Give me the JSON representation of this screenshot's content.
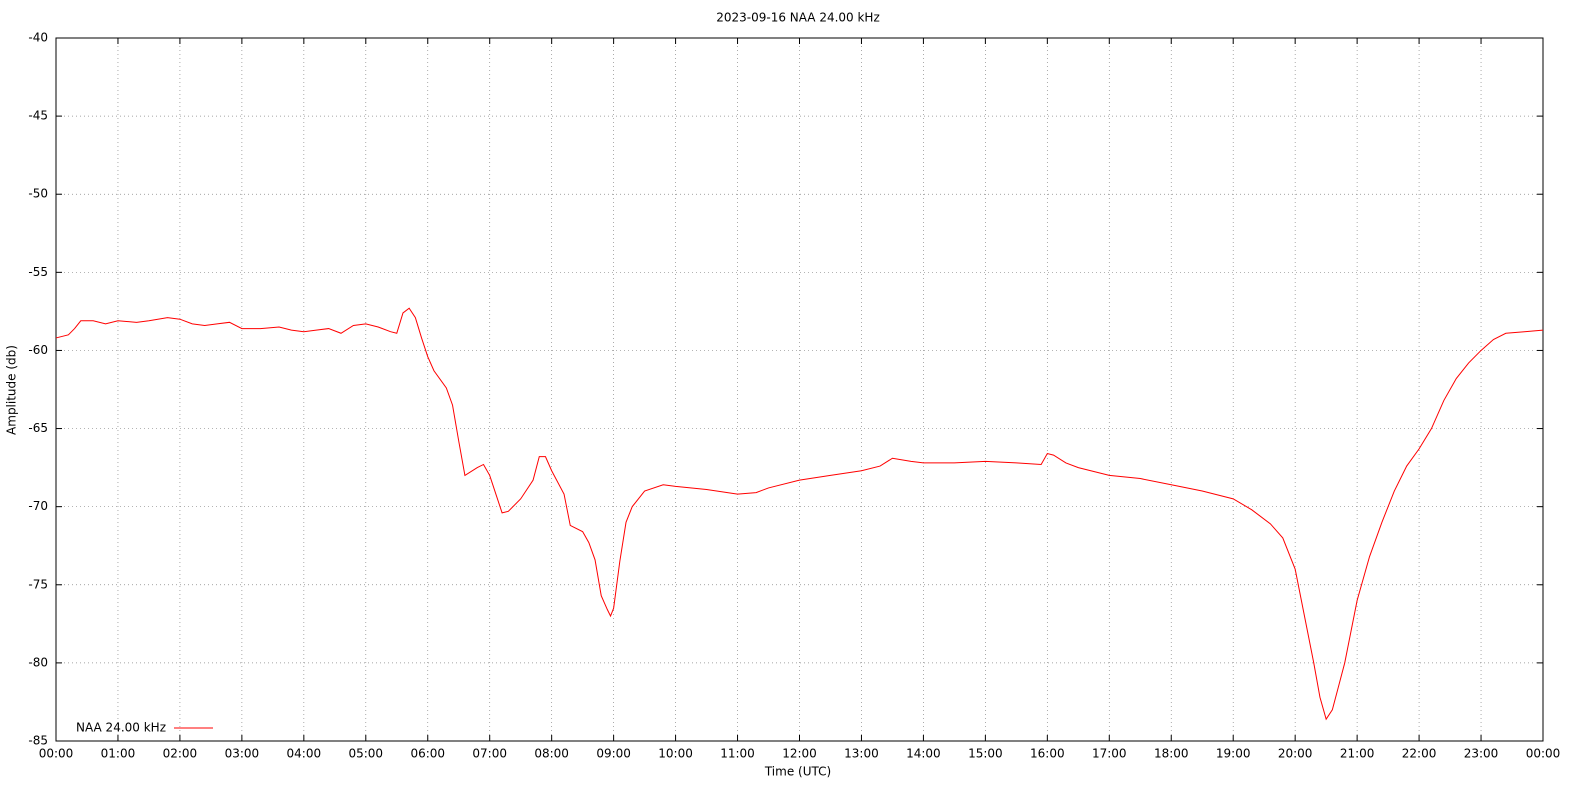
{
  "chart_data": {
    "type": "line",
    "title": "2023-09-16 NAA 24.00 kHz",
    "x_label": "Time (UTC)",
    "y_label": "Amplitude (db)",
    "legend": "bottom-left",
    "grid": true,
    "xlim": [
      0,
      24
    ],
    "xticks": [
      {
        "value": 0,
        "label": "00:00"
      },
      {
        "value": 1,
        "label": "01:00"
      },
      {
        "value": 2,
        "label": "02:00"
      },
      {
        "value": 3,
        "label": "03:00"
      },
      {
        "value": 4,
        "label": "04:00"
      },
      {
        "value": 5,
        "label": "05:00"
      },
      {
        "value": 6,
        "label": "06:00"
      },
      {
        "value": 7,
        "label": "07:00"
      },
      {
        "value": 8,
        "label": "08:00"
      },
      {
        "value": 9,
        "label": "09:00"
      },
      {
        "value": 10,
        "label": "10:00"
      },
      {
        "value": 11,
        "label": "11:00"
      },
      {
        "value": 12,
        "label": "12:00"
      },
      {
        "value": 13,
        "label": "13:00"
      },
      {
        "value": 14,
        "label": "14:00"
      },
      {
        "value": 15,
        "label": "15:00"
      },
      {
        "value": 16,
        "label": "16:00"
      },
      {
        "value": 17,
        "label": "17:00"
      },
      {
        "value": 18,
        "label": "18:00"
      },
      {
        "value": 19,
        "label": "19:00"
      },
      {
        "value": 20,
        "label": "20:00"
      },
      {
        "value": 21,
        "label": "21:00"
      },
      {
        "value": 22,
        "label": "22:00"
      },
      {
        "value": 23,
        "label": "23:00"
      },
      {
        "value": 24,
        "label": "00:00"
      }
    ],
    "ylim": [
      -85,
      -40
    ],
    "yticks": [
      -85,
      -80,
      -75,
      -70,
      -65,
      -60,
      -55,
      -50,
      -45,
      -40
    ],
    "x": [
      0,
      0.2,
      0.3,
      0.4,
      0.6,
      0.8,
      1,
      1.3,
      1.5,
      1.8,
      2,
      2.2,
      2.4,
      2.6,
      2.8,
      3,
      3.3,
      3.6,
      3.8,
      4,
      4.2,
      4.4,
      4.6,
      4.8,
      5,
      5.2,
      5.4,
      5.5,
      5.6,
      5.7,
      5.8,
      5.9,
      6,
      6.1,
      6.3,
      6.4,
      6.5,
      6.6,
      6.8,
      6.9,
      7,
      7.1,
      7.2,
      7.3,
      7.5,
      7.7,
      7.8,
      7.9,
      8,
      8.2,
      8.3,
      8.5,
      8.6,
      8.7,
      8.8,
      8.9,
      8.95,
      9,
      9.1,
      9.2,
      9.3,
      9.5,
      9.8,
      10,
      10.5,
      11,
      11.3,
      11.5,
      12,
      12.5,
      13,
      13.3,
      13.5,
      13.8,
      14,
      14.5,
      15,
      15.5,
      15.9,
      16,
      16.1,
      16.3,
      16.5,
      17,
      17.5,
      18,
      18.5,
      19,
      19.3,
      19.6,
      19.8,
      20,
      20.1,
      20.2,
      20.3,
      20.4,
      20.5,
      20.6,
      20.7,
      20.8,
      20.9,
      21,
      21.2,
      21.4,
      21.6,
      21.8,
      22,
      22.2,
      22.4,
      22.6,
      22.8,
      23,
      23.2,
      23.4,
      23.7,
      24
    ],
    "series": [
      {
        "name": "NAA 24.00 kHz",
        "color": "#ff0000",
        "values": [
          -59.2,
          -59.0,
          -58.6,
          -58.1,
          -58.1,
          -58.3,
          -58.1,
          -58.2,
          -58.1,
          -57.9,
          -58.0,
          -58.3,
          -58.4,
          -58.3,
          -58.2,
          -58.6,
          -58.6,
          -58.5,
          -58.7,
          -58.8,
          -58.7,
          -58.6,
          -58.9,
          -58.4,
          -58.3,
          -58.5,
          -58.8,
          -58.9,
          -57.6,
          -57.3,
          -57.9,
          -59.2,
          -60.4,
          -61.3,
          -62.4,
          -63.5,
          -65.8,
          -68.0,
          -67.5,
          -67.3,
          -68.0,
          -69.2,
          -70.4,
          -70.3,
          -69.5,
          -68.3,
          -66.8,
          -66.8,
          -67.7,
          -69.2,
          -71.2,
          -71.6,
          -72.3,
          -73.4,
          -75.7,
          -76.6,
          -77.0,
          -76.5,
          -73.5,
          -71.0,
          -70.0,
          -69.0,
          -68.6,
          -68.7,
          -68.9,
          -69.2,
          -69.1,
          -68.8,
          -68.3,
          -68.0,
          -67.7,
          -67.4,
          -66.9,
          -67.1,
          -67.2,
          -67.2,
          -67.1,
          -67.2,
          -67.3,
          -66.6,
          -66.7,
          -67.2,
          -67.5,
          -68.0,
          -68.2,
          -68.6,
          -69.0,
          -69.5,
          -70.2,
          -71.1,
          -72.0,
          -74.0,
          -76.0,
          -78.0,
          -80.0,
          -82.2,
          -83.6,
          -83.0,
          -81.5,
          -80.0,
          -78.0,
          -76.0,
          -73.2,
          -71.0,
          -69.0,
          -67.4,
          -66.3,
          -65.0,
          -63.2,
          -61.8,
          -60.8,
          -60.0,
          -59.3,
          -58.9,
          -58.8,
          -58.7
        ]
      }
    ]
  }
}
